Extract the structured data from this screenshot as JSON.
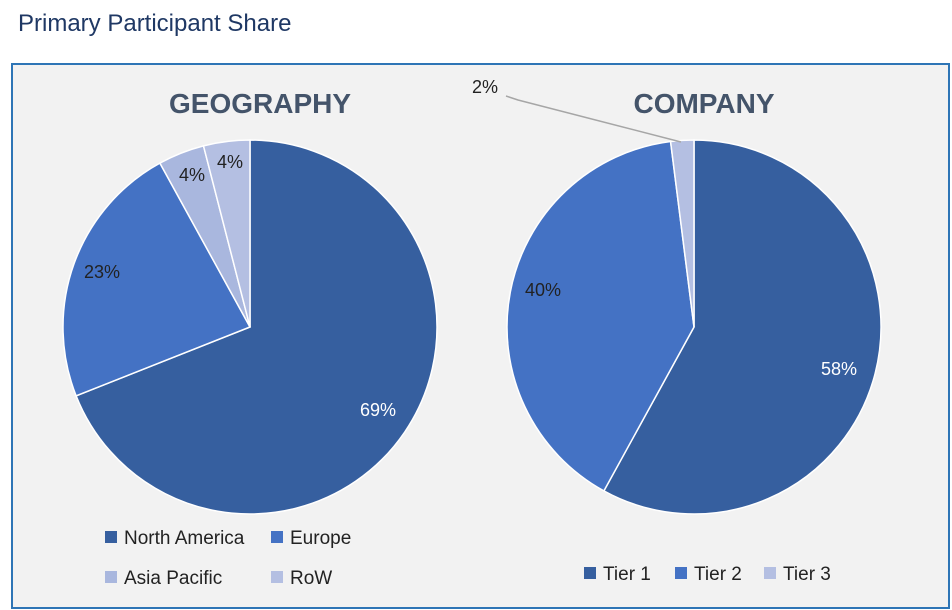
{
  "page": {
    "title": "Primary Participant Share"
  },
  "colors": {
    "panel_bg": "#f2f2f2",
    "panel_border": "#2e75b6",
    "title_color": "#1f3864",
    "slice_dark": "#365f9f",
    "slice_mid": "#4472c4",
    "slice_light": "#a9b7de",
    "slice_lighter": "#b4bfe2"
  },
  "chart_data": [
    {
      "type": "pie",
      "title": "GEOGRAPHY",
      "categories": [
        "North America",
        "Europe",
        "Asia Pacific",
        "RoW"
      ],
      "values": [
        69,
        23,
        4,
        4
      ],
      "labels": [
        "69%",
        "23%",
        "4%",
        "4%"
      ],
      "colors": [
        "#365f9f",
        "#4472c4",
        "#a9b7de",
        "#b4bfe2"
      ],
      "legend_position": "bottom"
    },
    {
      "type": "pie",
      "title": "COMPANY",
      "categories": [
        "Tier 1",
        "Tier 2",
        "Tier 3"
      ],
      "values": [
        58,
        40,
        2
      ],
      "labels": [
        "58%",
        "40%",
        "2%"
      ],
      "colors": [
        "#365f9f",
        "#4472c4",
        "#b4bfe2"
      ],
      "legend_position": "bottom"
    }
  ]
}
